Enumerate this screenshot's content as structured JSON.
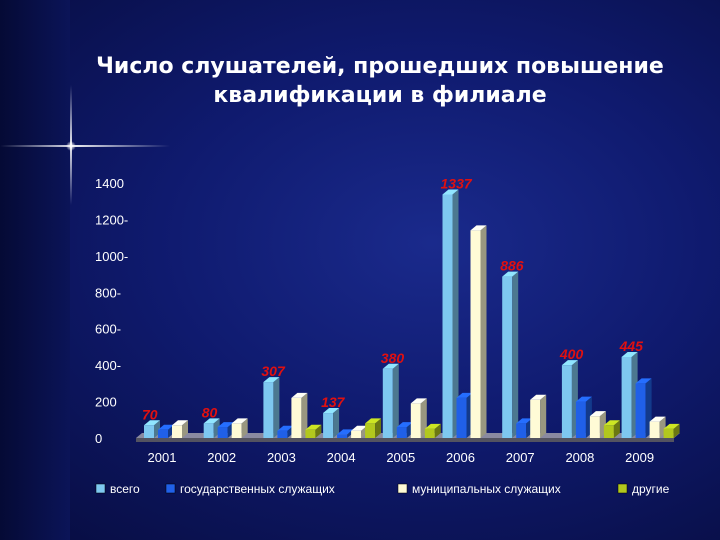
{
  "title": "Число слушателей, прошедших повышение квалификации в филиале",
  "chart_data": {
    "type": "bar",
    "title": "Число слушателей, прошедших повышение квалификации в филиале",
    "categories": [
      "2001",
      "2002",
      "2003",
      "2004",
      "2005",
      "2006",
      "2007",
      "2008",
      "2009"
    ],
    "series": [
      {
        "name": "всего",
        "values": [
          70,
          80,
          307,
          137,
          380,
          1337,
          886,
          400,
          445
        ]
      },
      {
        "name": "государственных служащих",
        "values": [
          45,
          60,
          40,
          20,
          60,
          220,
          80,
          200,
          300
        ]
      },
      {
        "name": "муниципальных служащих",
        "values": [
          70,
          80,
          220,
          40,
          190,
          1140,
          210,
          120,
          90
        ]
      },
      {
        "name": "другие",
        "values": [
          0,
          0,
          45,
          80,
          50,
          0,
          0,
          70,
          50
        ]
      }
    ],
    "data_labels": [
      "70",
      "80",
      "307",
      "137",
      "380",
      "1337",
      "886",
      "400",
      "445"
    ],
    "y_ticks": [
      "0",
      "200",
      "400-",
      "600-",
      "800-",
      "1000-",
      "1200-",
      "1400"
    ],
    "ylim": [
      0,
      1400
    ],
    "xlabel": "",
    "ylabel": "",
    "legend_position": "bottom",
    "colors": {
      "всего": "#7ec8f0",
      "государственных служащих": "#2060e8",
      "муниципальных служащих": "#fffbd6",
      "другие": "#b2c81e",
      "data_label": "#e01010",
      "axis_text": "#ffffff",
      "floor": "#8a8aa0"
    }
  }
}
